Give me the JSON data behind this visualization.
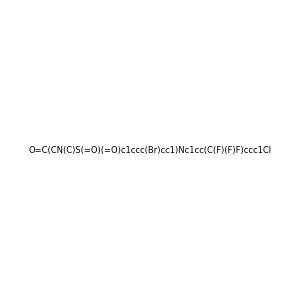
{
  "smiles": "O=C(CN(C)S(=O)(=O)c1ccc(Br)cc1)Nc1cc(C(F)(F)F)ccc1Cl",
  "image_size": 300,
  "background_color": "#f0f0f0",
  "title": ""
}
